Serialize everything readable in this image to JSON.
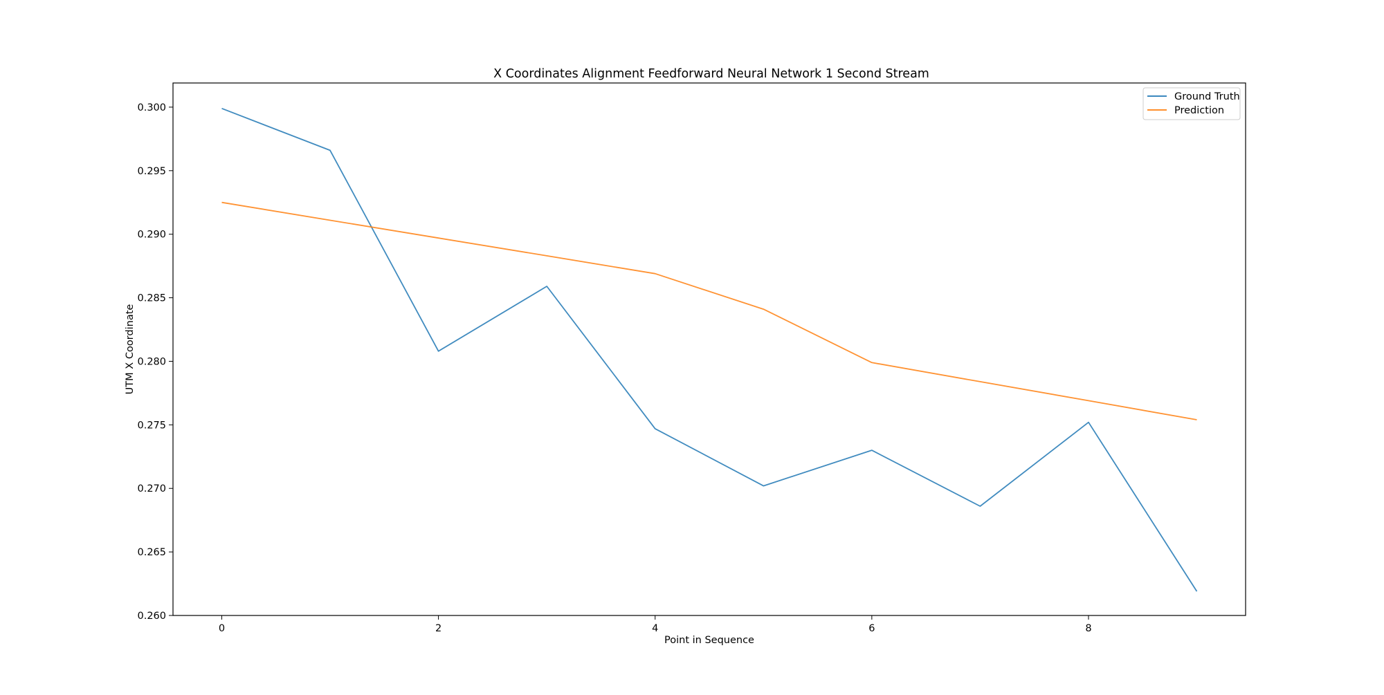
{
  "chart_data": {
    "type": "line",
    "title": "X Coordinates Alignment Feedforward Neural Network 1 Second Stream",
    "xlabel": "Point in Sequence",
    "ylabel": "UTM X Coordinate",
    "x": [
      0,
      1,
      2,
      3,
      4,
      5,
      6,
      7,
      8,
      9
    ],
    "xlim": [
      -0.45,
      9.45
    ],
    "ylim": [
      0.26,
      0.3019
    ],
    "xticks": [
      0,
      2,
      4,
      6,
      8
    ],
    "xtick_labels": [
      "0",
      "2",
      "4",
      "6",
      "8"
    ],
    "yticks": [
      0.26,
      0.265,
      0.27,
      0.275,
      0.28,
      0.285,
      0.29,
      0.295,
      0.3
    ],
    "ytick_labels": [
      "0.260",
      "0.265",
      "0.270",
      "0.275",
      "0.280",
      "0.285",
      "0.290",
      "0.295",
      "0.300"
    ],
    "grid": false,
    "legend_position": "top-right",
    "series": [
      {
        "name": "Ground Truth",
        "color": "#1f77b4",
        "values": [
          0.2999,
          0.2966,
          0.2808,
          0.2859,
          0.2747,
          0.2702,
          0.273,
          0.2686,
          0.2752,
          0.2619
        ]
      },
      {
        "name": "Prediction",
        "color": "#ff7f0e",
        "values": [
          0.2925,
          0.2911,
          0.2897,
          0.2883,
          0.2869,
          0.2841,
          0.2799,
          0.2784,
          0.2769,
          0.2754
        ]
      }
    ]
  }
}
